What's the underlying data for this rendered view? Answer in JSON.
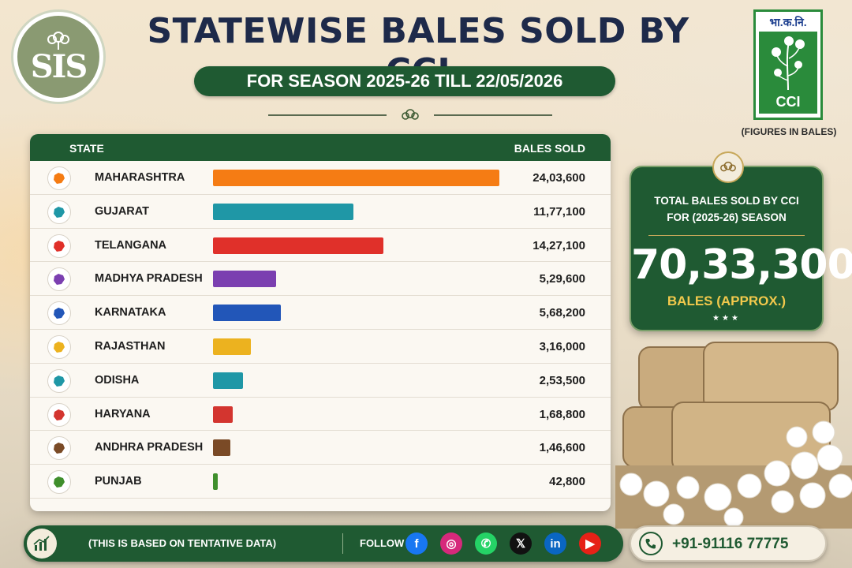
{
  "header": {
    "title": "STATEWISE BALES SOLD BY CCI",
    "subtitle": "FOR SEASON 2025-26 TILL 22/05/2026",
    "left_logo_icon": "cotton-flower-monogram-icon",
    "left_logo_text": "SIS",
    "cci_logo_hindi": "भा.क.नि.",
    "cci_logo_text": "CCI",
    "figures_note": "(FIGURES IN BALES)"
  },
  "table": {
    "col_state": "STATE",
    "col_bales": "BALES SOLD"
  },
  "chart_data": {
    "type": "bar",
    "orientation": "horizontal",
    "categories": [
      "MAHARASHTRA",
      "GUJARAT",
      "TELANGANA",
      "MADHYA PRADESH",
      "KARNATAKA",
      "RAJASTHAN",
      "ODISHA",
      "HARYANA",
      "ANDHRA PRADESH",
      "PUNJAB"
    ],
    "values": [
      2403600,
      1177100,
      1427100,
      529600,
      568200,
      316000,
      253500,
      168800,
      146600,
      42800
    ],
    "value_labels": [
      "24,03,600",
      "11,77,100",
      "14,27,100",
      "5,29,600",
      "5,68,200",
      "3,16,000",
      "2,53,500",
      "1,68,800",
      "1,46,600",
      "42,800"
    ],
    "colors": [
      "#f57c14",
      "#1f97a6",
      "#e0302a",
      "#7b3fb0",
      "#2256b8",
      "#ecb21f",
      "#1f97a6",
      "#d3352f",
      "#7a4a26",
      "#3f8f2c"
    ],
    "xlim": [
      0,
      2403600
    ]
  },
  "total": {
    "caption_line1": "TOTAL BALES SOLD BY CCI",
    "caption_line2": "FOR (2025-26) SEASON",
    "value": "70,33,300",
    "unit": "BALES (APPROX.)",
    "stars": "★★★"
  },
  "footer": {
    "note": "(THIS IS BASED ON TENTATIVE DATA)",
    "follow_label": "FOLLOW US",
    "social": [
      {
        "name": "facebook-icon",
        "glyph": "f",
        "color": "#1877f2"
      },
      {
        "name": "instagram-icon",
        "glyph": "◎",
        "color": "#d6297b"
      },
      {
        "name": "whatsapp-icon",
        "glyph": "✆",
        "color": "#25d366"
      },
      {
        "name": "x-icon",
        "glyph": "𝕏",
        "color": "#111111"
      },
      {
        "name": "linkedin-icon",
        "glyph": "in",
        "color": "#0a66c2"
      },
      {
        "name": "youtube-icon",
        "glyph": "▶",
        "color": "#e62117"
      }
    ],
    "phone": "+91-91116 77775"
  }
}
